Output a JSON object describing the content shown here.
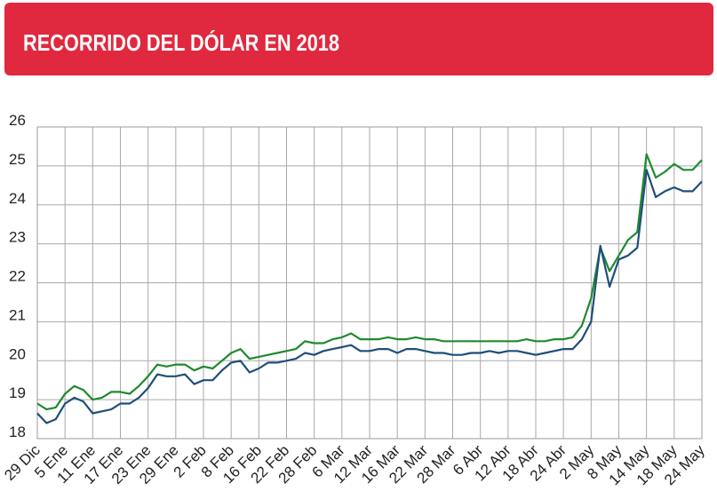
{
  "chart_data": {
    "type": "line",
    "title": "RECORRIDO DEL DÓLAR EN 2018",
    "categories": [
      "29 Dic",
      null,
      null,
      "5 Ene",
      null,
      null,
      "11 Ene",
      null,
      null,
      "17 Ene",
      null,
      null,
      "23 Ene",
      null,
      null,
      "29 Ene",
      null,
      null,
      "2 Feb",
      null,
      null,
      "8 Feb",
      null,
      null,
      "16 Feb",
      null,
      null,
      "22 Feb",
      null,
      null,
      "28 Feb",
      null,
      null,
      "6 Mar",
      null,
      null,
      "12 Mar",
      null,
      null,
      "16 Mar",
      null,
      null,
      "22 Mar",
      null,
      null,
      "28 Mar",
      null,
      null,
      "6 Abr",
      null,
      null,
      "12 Abr",
      null,
      null,
      "18 Abr",
      null,
      null,
      "24 Abr",
      null,
      null,
      "2 May",
      null,
      null,
      "8 May",
      null,
      null,
      "14 May",
      null,
      null,
      "18 May",
      null,
      null,
      "24 May"
    ],
    "series": [
      {
        "color": "#1e8a2e",
        "values": [
          18.9,
          18.75,
          18.8,
          19.15,
          19.35,
          19.25,
          19.0,
          19.05,
          19.2,
          19.2,
          19.15,
          19.35,
          19.6,
          19.9,
          19.85,
          19.9,
          19.9,
          19.75,
          19.85,
          19.8,
          20.0,
          20.2,
          20.3,
          20.05,
          20.1,
          20.15,
          20.2,
          20.25,
          20.3,
          20.5,
          20.45,
          20.45,
          20.55,
          20.6,
          20.7,
          20.55,
          20.55,
          20.55,
          20.6,
          20.55,
          20.55,
          20.6,
          20.55,
          20.55,
          20.5,
          20.5,
          20.5,
          20.5,
          20.5,
          20.5,
          20.5,
          20.5,
          20.5,
          20.55,
          20.5,
          20.5,
          20.55,
          20.55,
          20.6,
          20.9,
          21.6,
          22.9,
          22.3,
          22.7,
          23.1,
          23.3,
          25.3,
          24.7,
          24.85,
          25.05,
          24.9,
          24.9,
          25.15
        ]
      },
      {
        "color": "#1f4e79",
        "values": [
          18.65,
          18.4,
          18.5,
          18.9,
          19.05,
          18.95,
          18.65,
          18.7,
          18.75,
          18.9,
          18.9,
          19.05,
          19.3,
          19.65,
          19.6,
          19.6,
          19.65,
          19.4,
          19.5,
          19.5,
          19.75,
          19.95,
          20.0,
          19.7,
          19.8,
          19.95,
          19.95,
          20.0,
          20.05,
          20.2,
          20.15,
          20.25,
          20.3,
          20.35,
          20.4,
          20.25,
          20.25,
          20.3,
          20.3,
          20.2,
          20.3,
          20.3,
          20.25,
          20.2,
          20.2,
          20.15,
          20.15,
          20.2,
          20.2,
          20.25,
          20.2,
          20.25,
          20.25,
          20.2,
          20.15,
          20.2,
          20.25,
          20.3,
          20.3,
          20.55,
          21.0,
          22.95,
          21.9,
          22.6,
          22.7,
          22.9,
          24.9,
          24.2,
          24.35,
          24.45,
          24.35,
          24.35,
          24.6
        ]
      }
    ],
    "ylim": [
      18,
      26
    ],
    "yticks": [
      18,
      19,
      20,
      21,
      22,
      23,
      24,
      25,
      26
    ],
    "grid": true
  }
}
